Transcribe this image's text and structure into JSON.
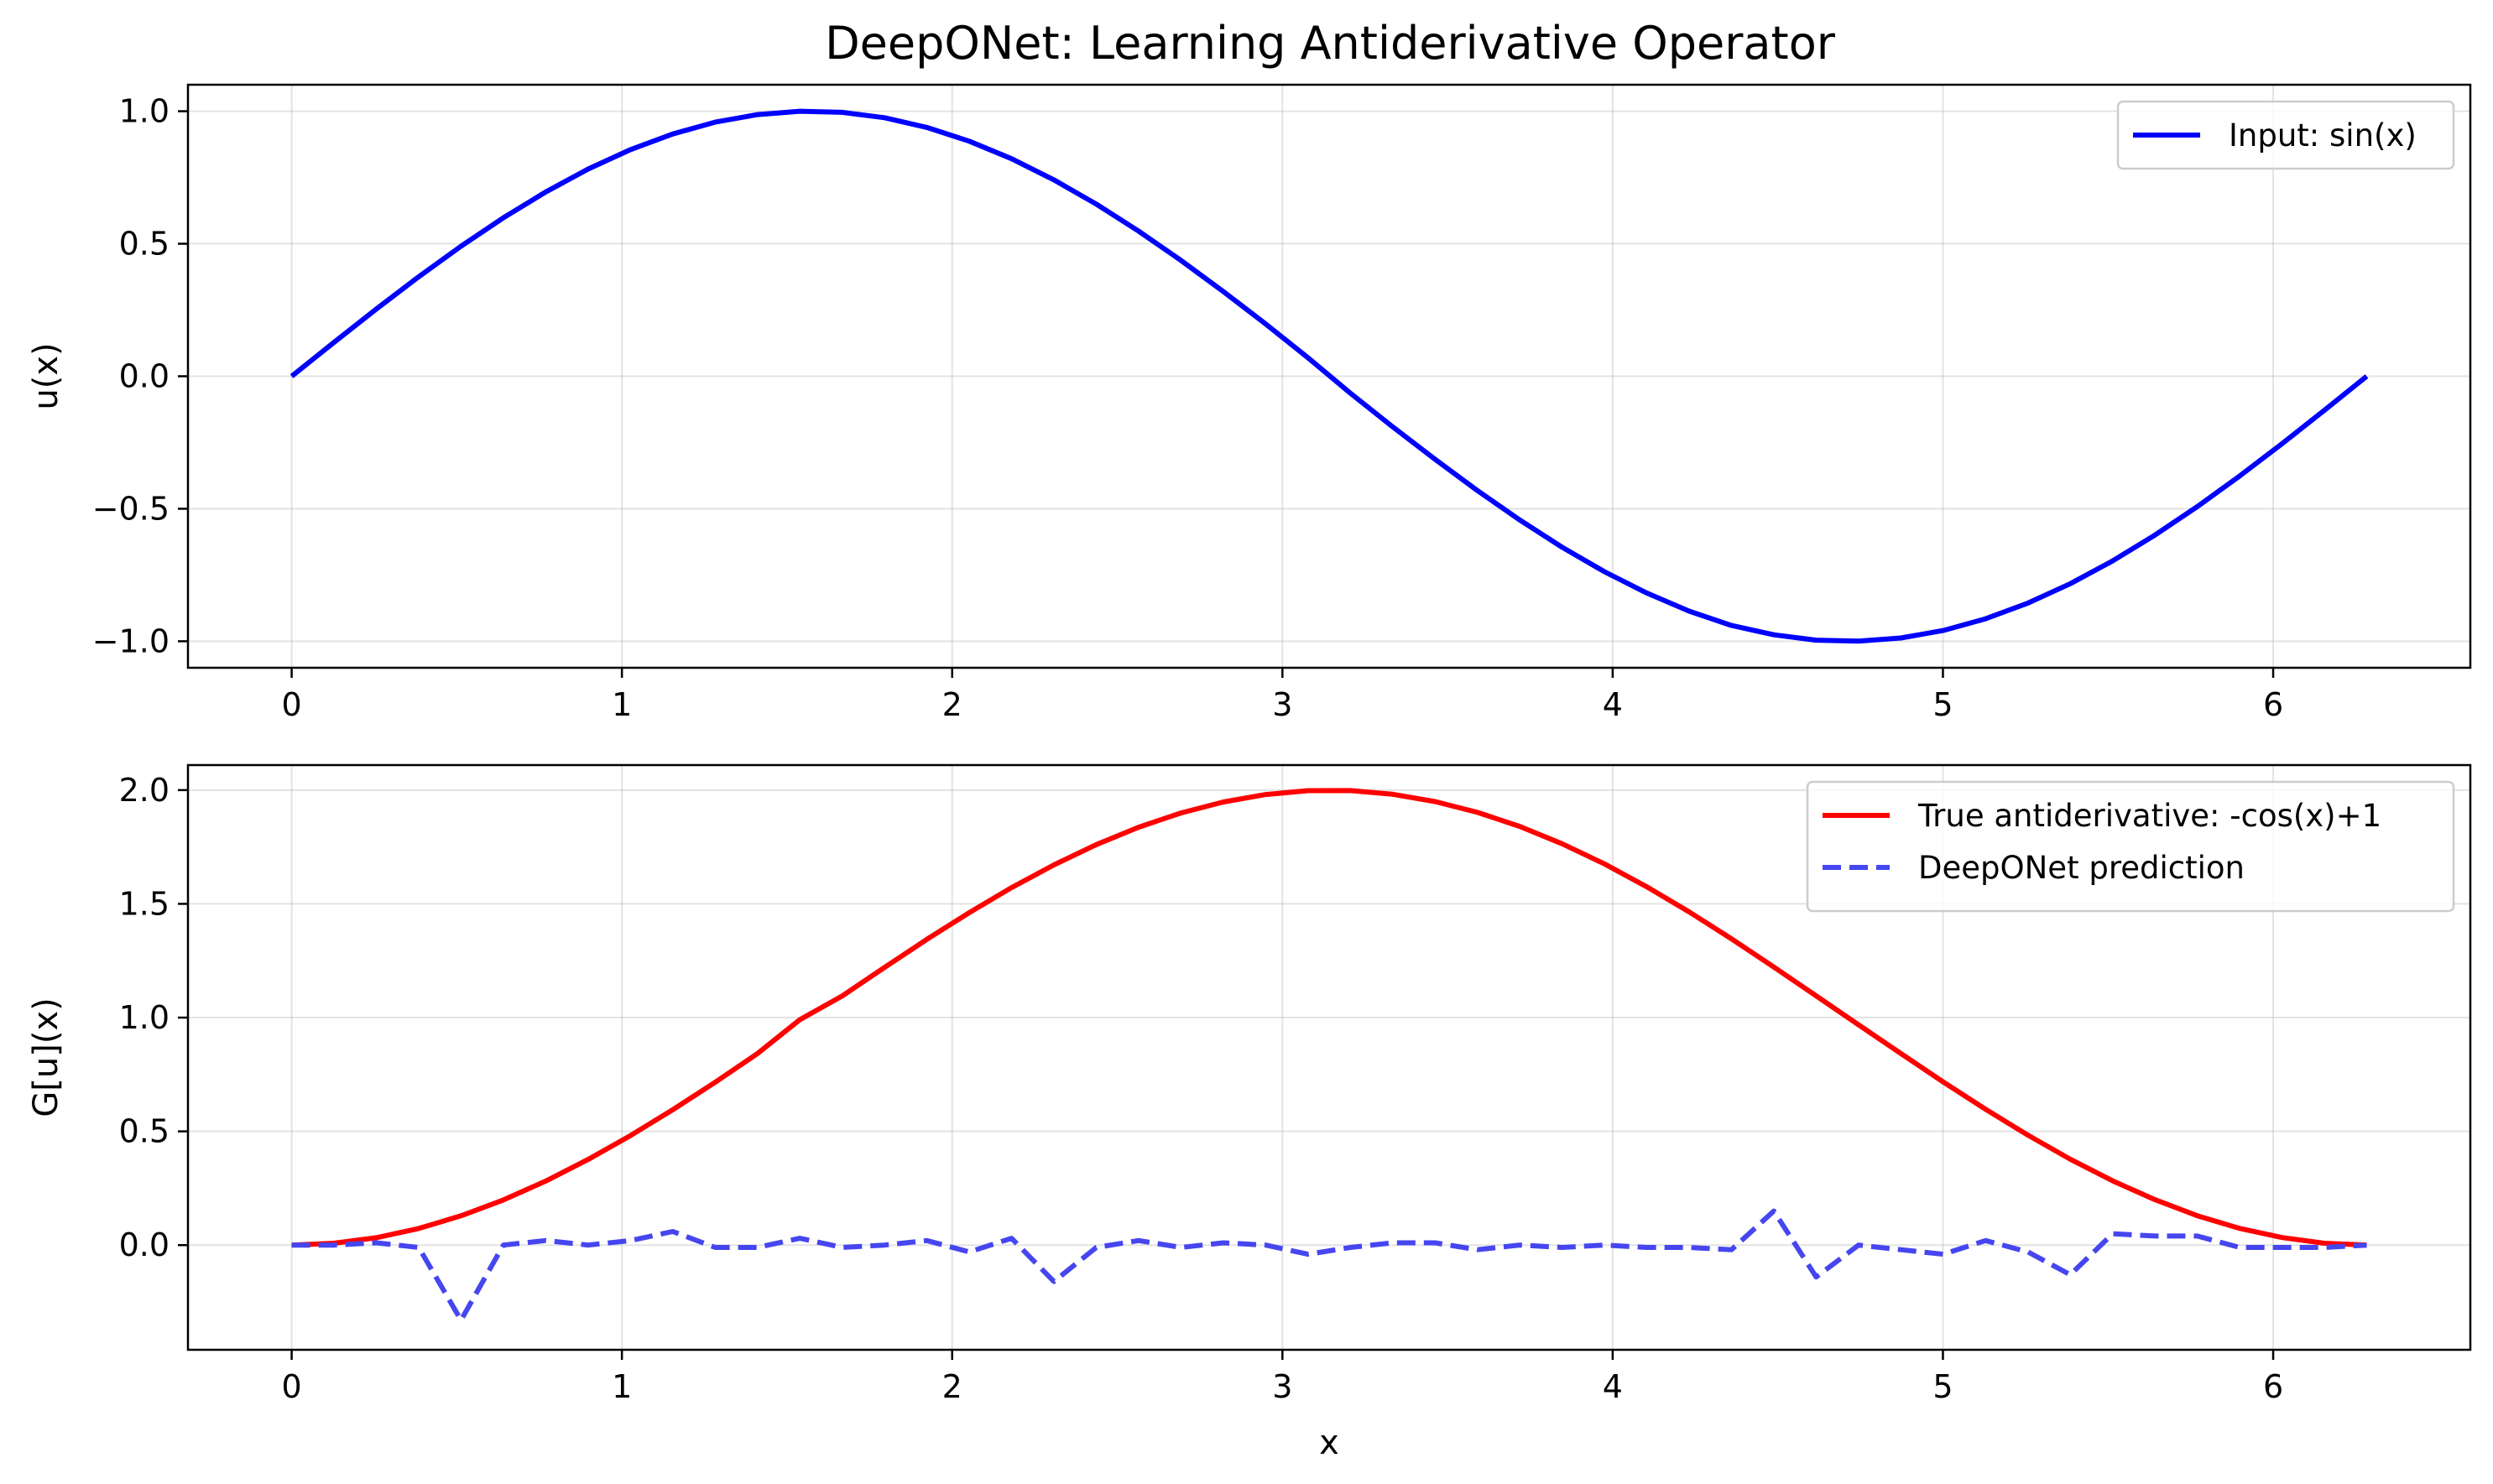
{
  "figure": {
    "title": "DeepONet: Learning Antiderivative Operator",
    "background": "#ffffff"
  },
  "chart_data": [
    {
      "type": "line",
      "title": "",
      "xlabel": "",
      "ylabel": "u(x)",
      "xlim": [
        -0.314,
        6.597
      ],
      "ylim": [
        -1.1,
        1.1
      ],
      "xticks": [
        0,
        1,
        2,
        3,
        4,
        5,
        6
      ],
      "xtick_labels": [
        "0",
        "1",
        "2",
        "3",
        "4",
        "5",
        "6"
      ],
      "yticks": [
        -1.0,
        -0.5,
        0.0,
        0.5,
        1.0
      ],
      "ytick_labels": [
        "−1.0",
        "−0.5",
        "0.0",
        "0.5",
        "1.0"
      ],
      "grid": true,
      "legend_position": "top-right",
      "x": [
        0.0,
        0.1282,
        0.2565,
        0.3847,
        0.5129,
        0.6411,
        0.7694,
        0.8976,
        1.0258,
        1.1541,
        1.2823,
        1.4105,
        1.5387,
        1.667,
        1.7952,
        1.9234,
        2.0517,
        2.1799,
        2.3081,
        2.4363,
        2.5646,
        2.6928,
        2.821,
        2.9493,
        3.0775,
        3.2057,
        3.3339,
        3.4622,
        3.5904,
        3.7186,
        3.8469,
        3.9751,
        4.1033,
        4.2315,
        4.3598,
        4.488,
        4.6162,
        4.7445,
        4.8727,
        5.0009,
        5.1291,
        5.2574,
        5.3856,
        5.5138,
        5.6421,
        5.7703,
        5.8985,
        6.0267,
        6.155,
        6.2832
      ],
      "series": [
        {
          "name": "Input: sin(x)",
          "color": "#0000ff",
          "style": "solid",
          "values": [
            0.0,
            0.1279,
            0.2537,
            0.3753,
            0.4907,
            0.5981,
            0.6956,
            0.7818,
            0.855,
            0.9143,
            0.9587,
            0.9874,
            0.9999,
            0.9959,
            0.9755,
            0.939,
            0.8871,
            0.8207,
            0.7411,
            0.6495,
            0.5475,
            0.437,
            0.3195,
            0.1972,
            0.0696,
            -0.0641,
            -0.1908,
            -0.3135,
            -0.4313,
            -0.5424,
            -0.6451,
            -0.7374,
            -0.8181,
            -0.8864,
            -0.9406,
            -0.9755,
            -0.996,
            -0.9997,
            -0.9877,
            -0.9593,
            -0.9152,
            -0.8559,
            -0.7827,
            -0.6967,
            -0.5993,
            -0.4919,
            -0.3765,
            -0.2549,
            -0.1286,
            0.0
          ]
        }
      ]
    },
    {
      "type": "line",
      "title": "",
      "xlabel": "x",
      "ylabel": "G[u](x)",
      "xlim": [
        -0.314,
        6.597
      ],
      "ylim": [
        -0.46,
        2.11
      ],
      "xticks": [
        0,
        1,
        2,
        3,
        4,
        5,
        6
      ],
      "xtick_labels": [
        "0",
        "1",
        "2",
        "3",
        "4",
        "5",
        "6"
      ],
      "yticks": [
        0.0,
        0.5,
        1.0,
        1.5,
        2.0
      ],
      "ytick_labels": [
        "0.0",
        "0.5",
        "1.0",
        "1.5",
        "2.0"
      ],
      "grid": true,
      "legend_position": "top-right",
      "x": [
        0.0,
        0.1282,
        0.2565,
        0.3847,
        0.5129,
        0.6411,
        0.7694,
        0.8976,
        1.0258,
        1.1541,
        1.2823,
        1.4105,
        1.5387,
        1.667,
        1.7952,
        1.9234,
        2.0517,
        2.1799,
        2.3081,
        2.4363,
        2.5646,
        2.6928,
        2.821,
        2.9493,
        3.0775,
        3.2057,
        3.3339,
        3.4622,
        3.5904,
        3.7186,
        3.8469,
        3.9751,
        4.1033,
        4.2315,
        4.3598,
        4.488,
        4.6162,
        4.7445,
        4.8727,
        5.0009,
        5.1291,
        5.2574,
        5.3856,
        5.5138,
        5.6421,
        5.7703,
        5.8985,
        6.0267,
        6.155,
        6.2832
      ],
      "series": [
        {
          "name": "True antiderivative: -cos(x)+1",
          "color": "#ff0000",
          "style": "solid",
          "values": [
            0.0,
            0.0082,
            0.0327,
            0.0731,
            0.1287,
            0.1985,
            0.2816,
            0.3765,
            0.4814,
            0.5952,
            0.7157,
            0.8418,
            0.9911,
            1.0954,
            1.2201,
            1.344,
            1.4616,
            1.5713,
            1.6713,
            1.7604,
            1.8368,
            1.8994,
            1.9476,
            1.9805,
            1.9976,
            1.9979,
            1.9816,
            1.9495,
            1.9022,
            1.8403,
            1.7643,
            1.6755,
            1.5751,
            1.4646,
            1.3459,
            1.2223,
            1.0955,
            0.9683,
            0.8418,
            0.7175,
            0.5971,
            0.4831,
            0.3777,
            0.2826,
            0.1998,
            0.1294,
            0.0737,
            0.0332,
            0.0084,
            0.0
          ]
        },
        {
          "name": "DeepONet prediction",
          "color": "#4646f0",
          "style": "dashed",
          "values": [
            0.0,
            0.0,
            0.01,
            -0.01,
            -0.33,
            0.0,
            0.02,
            0.0,
            0.02,
            0.06,
            -0.01,
            -0.01,
            0.03,
            -0.01,
            0.0,
            0.02,
            -0.03,
            0.03,
            -0.16,
            -0.01,
            0.02,
            -0.01,
            0.01,
            0.0,
            -0.04,
            -0.01,
            0.01,
            0.01,
            -0.02,
            0.0,
            -0.01,
            0.0,
            -0.01,
            -0.01,
            -0.02,
            0.15,
            -0.14,
            0.0,
            -0.02,
            -0.04,
            0.02,
            -0.03,
            -0.13,
            0.05,
            0.04,
            0.04,
            -0.01,
            -0.01,
            -0.01,
            0.0
          ]
        }
      ]
    }
  ]
}
